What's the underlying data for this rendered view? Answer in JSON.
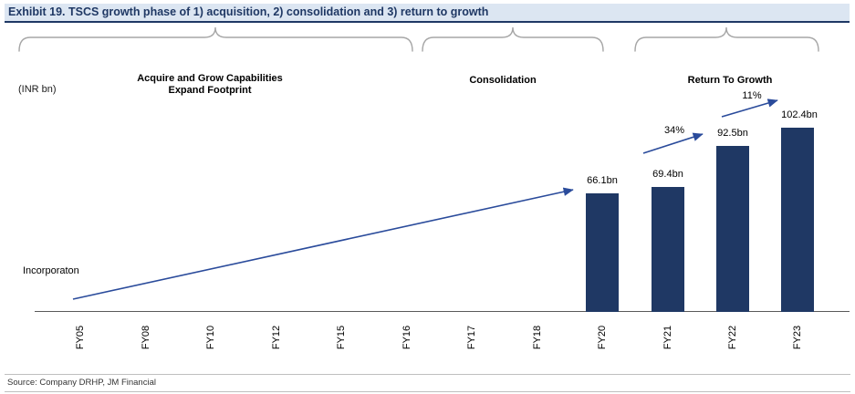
{
  "header": {
    "title": "Exhibit 19. TSCS growth phase of 1) acquisition, 2) consolidation and 3) return to growth"
  },
  "axis_unit_label": "(INR bn)",
  "phases": [
    {
      "line1": "Acquire and Grow Capabilities",
      "line2": "Expand Footprint"
    },
    {
      "line1": "Consolidation"
    },
    {
      "line1": "Return To Growth"
    }
  ],
  "incorporation_label": "Incorporaton",
  "footer": {
    "source": "Source: Company DRHP, JM Financial"
  },
  "colors": {
    "bar": "#1F3864",
    "arrow": "#2A4B9B",
    "title_bg": "#DCE6F2",
    "title_text": "#1F3864",
    "brace": "#A6A6A6"
  },
  "chart_data": {
    "type": "bar",
    "title": "Exhibit 19. TSCS growth phase of 1) acquisition, 2) consolidation and 3) return to growth",
    "ylabel": "(INR bn)",
    "ylim": [
      0,
      110
    ],
    "grid": false,
    "legend": false,
    "categories": [
      "FY05",
      "FY08",
      "FY10",
      "FY12",
      "FY15",
      "FY16",
      "FY17",
      "FY18",
      "FY20",
      "FY21",
      "FY22",
      "FY23"
    ],
    "bars": [
      {
        "category": "FY20",
        "value": 66.1,
        "label": "66.1bn"
      },
      {
        "category": "FY21",
        "value": 69.4,
        "label": "69.4bn"
      },
      {
        "category": "FY22",
        "value": 92.5,
        "label": "92.5bn"
      },
      {
        "category": "FY23",
        "value": 102.4,
        "label": "102.4bn"
      }
    ],
    "growth_annotations": [
      {
        "label": "34%",
        "from": "FY21",
        "to": "FY22"
      },
      {
        "label": "11%",
        "from": "FY22",
        "to": "FY23"
      }
    ],
    "phase_spans": [
      {
        "label": "Acquire and Grow Capabilities Expand Footprint",
        "from": "FY05",
        "to": "FY16"
      },
      {
        "label": "Consolidation",
        "from": "FY17",
        "to": "FY20"
      },
      {
        "label": "Return To Growth",
        "from": "FY21",
        "to": "FY23"
      }
    ]
  }
}
